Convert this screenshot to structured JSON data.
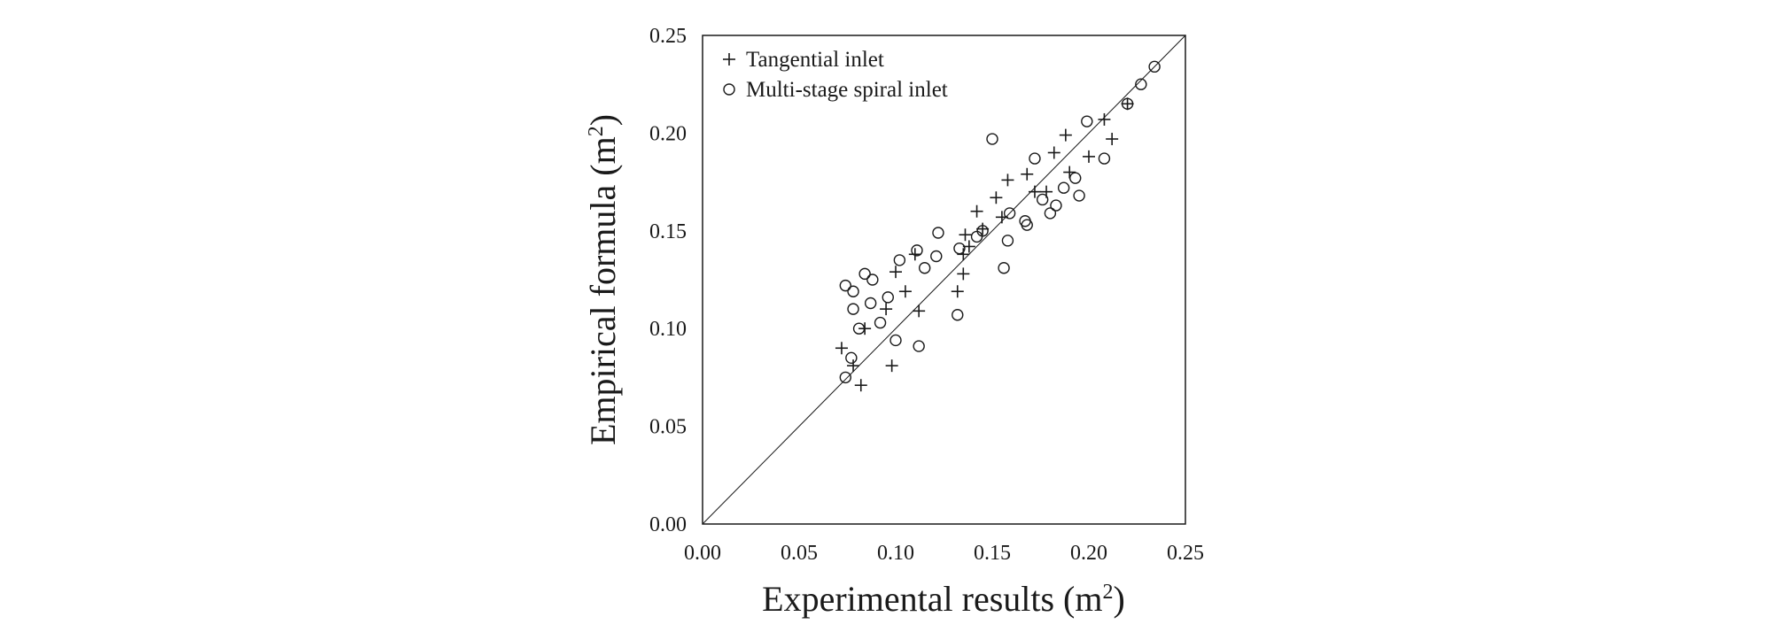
{
  "chart_data": {
    "type": "scatter",
    "title": "",
    "xlabel": "Experimental results (m",
    "xlabel_sup": "2",
    "xlabel_end": ")",
    "ylabel": "Empirical formula (m",
    "ylabel_sup": "2",
    "ylabel_end": ")",
    "xlim": [
      0,
      0.25
    ],
    "ylim": [
      0,
      0.25
    ],
    "x_ticks": [
      "0.00",
      "0.05",
      "0.10",
      "0.15",
      "0.20",
      "0.25"
    ],
    "y_ticks": [
      "0.00",
      "0.05",
      "0.10",
      "0.15",
      "0.20",
      "0.25"
    ],
    "grid": false,
    "legend_position": "top-left",
    "reference_line": {
      "from": [
        0,
        0
      ],
      "to": [
        0.25,
        0.25
      ]
    },
    "series": [
      {
        "name": "Tangential inlet",
        "marker": "plus",
        "points": [
          [
            0.072,
            0.09
          ],
          [
            0.078,
            0.081
          ],
          [
            0.082,
            0.071
          ],
          [
            0.084,
            0.1
          ],
          [
            0.095,
            0.11
          ],
          [
            0.098,
            0.081
          ],
          [
            0.1,
            0.129
          ],
          [
            0.105,
            0.119
          ],
          [
            0.11,
            0.138
          ],
          [
            0.112,
            0.109
          ],
          [
            0.132,
            0.119
          ],
          [
            0.135,
            0.128
          ],
          [
            0.135,
            0.138
          ],
          [
            0.136,
            0.148
          ],
          [
            0.138,
            0.142
          ],
          [
            0.142,
            0.16
          ],
          [
            0.145,
            0.151
          ],
          [
            0.152,
            0.167
          ],
          [
            0.155,
            0.157
          ],
          [
            0.158,
            0.176
          ],
          [
            0.168,
            0.179
          ],
          [
            0.172,
            0.17
          ],
          [
            0.178,
            0.17
          ],
          [
            0.182,
            0.19
          ],
          [
            0.188,
            0.199
          ],
          [
            0.19,
            0.18
          ],
          [
            0.2,
            0.188
          ],
          [
            0.208,
            0.207
          ],
          [
            0.212,
            0.197
          ],
          [
            0.22,
            0.215
          ]
        ]
      },
      {
        "name": "Multi-stage spiral inlet",
        "marker": "circle",
        "points": [
          [
            0.074,
            0.075
          ],
          [
            0.074,
            0.122
          ],
          [
            0.077,
            0.085
          ],
          [
            0.078,
            0.11
          ],
          [
            0.078,
            0.119
          ],
          [
            0.081,
            0.1
          ],
          [
            0.084,
            0.128
          ],
          [
            0.087,
            0.113
          ],
          [
            0.088,
            0.125
          ],
          [
            0.092,
            0.103
          ],
          [
            0.096,
            0.116
          ],
          [
            0.1,
            0.094
          ],
          [
            0.102,
            0.135
          ],
          [
            0.111,
            0.14
          ],
          [
            0.112,
            0.091
          ],
          [
            0.115,
            0.131
          ],
          [
            0.121,
            0.137
          ],
          [
            0.122,
            0.149
          ],
          [
            0.132,
            0.107
          ],
          [
            0.133,
            0.141
          ],
          [
            0.142,
            0.147
          ],
          [
            0.145,
            0.15
          ],
          [
            0.15,
            0.197
          ],
          [
            0.156,
            0.131
          ],
          [
            0.158,
            0.145
          ],
          [
            0.159,
            0.159
          ],
          [
            0.167,
            0.155
          ],
          [
            0.168,
            0.153
          ],
          [
            0.172,
            0.187
          ],
          [
            0.176,
            0.166
          ],
          [
            0.18,
            0.159
          ],
          [
            0.183,
            0.163
          ],
          [
            0.187,
            0.172
          ],
          [
            0.193,
            0.177
          ],
          [
            0.195,
            0.168
          ],
          [
            0.199,
            0.206
          ],
          [
            0.208,
            0.187
          ],
          [
            0.22,
            0.215
          ],
          [
            0.227,
            0.225
          ],
          [
            0.234,
            0.234
          ]
        ]
      }
    ]
  }
}
